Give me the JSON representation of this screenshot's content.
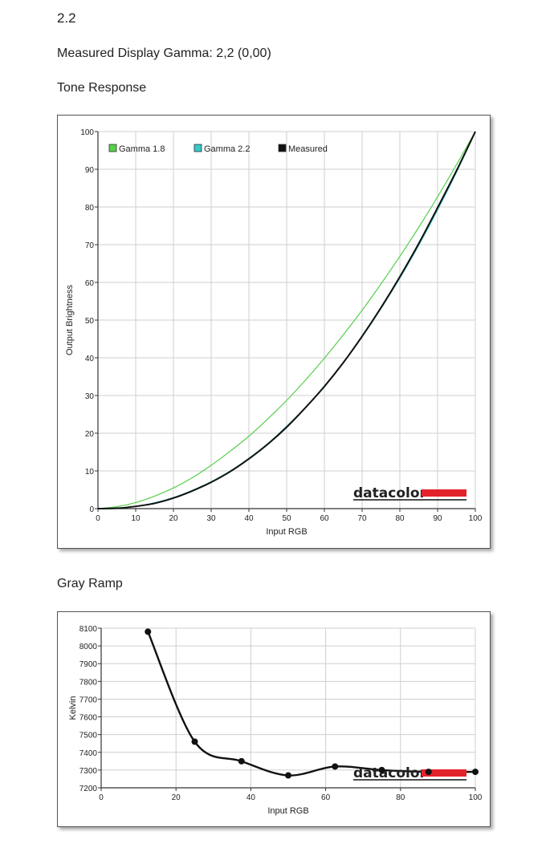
{
  "page": {
    "version": "2.2",
    "gamma_line": "Measured Display Gamma: 2,2 (0,00)",
    "tone_title": "Tone Response",
    "gray_title": "Gray Ramp",
    "brand_text": "datacolor",
    "brand_color": "#e3232c"
  },
  "chart_data": [
    {
      "type": "line",
      "title": "Tone Response",
      "xlabel": "Input RGB",
      "ylabel": "Output Brightness",
      "xlim": [
        0,
        100
      ],
      "ylim": [
        0,
        100
      ],
      "xticks": [
        0,
        10,
        20,
        30,
        40,
        50,
        60,
        70,
        80,
        90,
        100
      ],
      "yticks": [
        0,
        10,
        20,
        30,
        40,
        50,
        60,
        70,
        80,
        90,
        100
      ],
      "grid": true,
      "legend_position": "top",
      "x": [
        0,
        5,
        10,
        15,
        20,
        25,
        30,
        35,
        40,
        45,
        50,
        55,
        60,
        65,
        70,
        75,
        80,
        85,
        90,
        95,
        100
      ],
      "series": [
        {
          "name": "Gamma 1.8",
          "color": "#55d04a",
          "values": [
            0,
            0.5,
            1.6,
            3.3,
            5.5,
            8.2,
            11.5,
            15.2,
            19.2,
            23.8,
            28.7,
            34.1,
            39.9,
            46.1,
            52.6,
            59.6,
            66.9,
            74.6,
            82.7,
            91.2,
            100
          ]
        },
        {
          "name": "Gamma 2.2",
          "color": "#36c8c8",
          "values": [
            0,
            0.1,
            0.6,
            1.5,
            2.9,
            4.8,
            7.1,
            9.9,
            13.3,
            17.2,
            21.8,
            26.8,
            32.5,
            38.7,
            45.6,
            53.1,
            61.2,
            69.9,
            79.3,
            89.3,
            100
          ]
        },
        {
          "name": "Measured",
          "color": "#111111",
          "values": [
            0,
            0.1,
            0.6,
            1.4,
            2.8,
            4.7,
            7.0,
            9.8,
            13.2,
            17.1,
            21.6,
            26.8,
            32.4,
            38.7,
            45.7,
            53.3,
            61.5,
            70.3,
            79.8,
            89.6,
            100
          ]
        }
      ]
    },
    {
      "type": "line",
      "title": "Gray Ramp",
      "xlabel": "Input RGB",
      "ylabel": "Kelvin",
      "xlim": [
        0,
        100
      ],
      "ylim": [
        7200,
        8100
      ],
      "xticks": [
        0,
        20,
        40,
        60,
        80,
        100
      ],
      "yticks": [
        7200,
        7300,
        7400,
        7500,
        7600,
        7700,
        7800,
        7900,
        8000,
        8100
      ],
      "grid": true,
      "x": [
        12.5,
        25,
        37.5,
        50,
        62.5,
        75,
        87.5,
        100
      ],
      "series": [
        {
          "name": "",
          "color": "#111111",
          "values": [
            8080,
            7460,
            7350,
            7270,
            7320,
            7300,
            7290,
            7290
          ]
        }
      ]
    }
  ]
}
